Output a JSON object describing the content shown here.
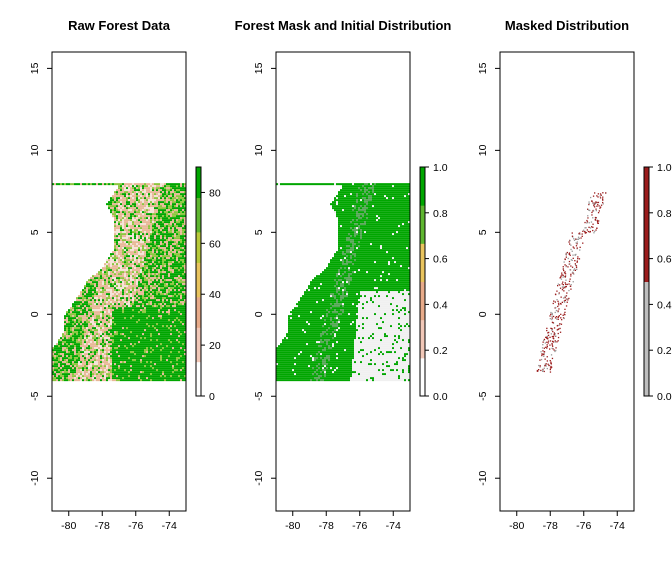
{
  "chart_data": [
    {
      "type": "heatmap",
      "title": "Raw Forest Data",
      "xlabel": "",
      "ylabel": "",
      "xlim": [
        -81,
        -73
      ],
      "ylim": [
        -12,
        16
      ],
      "x_ticks": [
        "-80",
        "-78",
        "-76",
        "-74"
      ],
      "y_ticks": [
        "-10",
        "-5",
        "0",
        "5",
        "10",
        "15"
      ],
      "legend": {
        "placement": "right",
        "min": 0,
        "max": 90,
        "ticks": [
          "0",
          "20",
          "40",
          "60",
          "80"
        ],
        "tick_values": [
          0,
          20,
          40,
          60,
          80
        ],
        "colors": [
          "#ffffff",
          "#f2c8b8",
          "#e8ab8a",
          "#e9c45e",
          "#b8c93a",
          "#5fb630",
          "#00a600"
        ]
      },
      "raster_extent": {
        "x": [
          -81,
          -73
        ],
        "y": [
          -4,
          8
        ]
      },
      "pixel_colors": {
        "dense": "#00a600",
        "mid": "#8cc63f",
        "sparse": "#e8b898",
        "bare": "#f4e3d7"
      }
    },
    {
      "type": "heatmap",
      "title": "Forest Mask and Initial Distribution",
      "xlabel": "",
      "ylabel": "",
      "xlim": [
        -81,
        -73
      ],
      "ylim": [
        -12,
        16
      ],
      "x_ticks": [
        "-80",
        "-78",
        "-76",
        "-74"
      ],
      "y_ticks": [
        "-10",
        "-5",
        "0",
        "5",
        "10",
        "15"
      ],
      "legend": {
        "placement": "right",
        "min": 0,
        "max": 1,
        "ticks": [
          "0.0",
          "0.2",
          "0.4",
          "0.6",
          "0.8",
          "1.0"
        ],
        "tick_values": [
          0,
          0.2,
          0.4,
          0.6,
          0.8,
          1.0
        ],
        "colors": [
          "#ffffff",
          "#f2c8b8",
          "#e8ab8a",
          "#e9c45e",
          "#5fb630",
          "#00a600"
        ]
      },
      "raster_extent": {
        "x": [
          -81,
          -73
        ],
        "y": [
          -4,
          8
        ]
      },
      "pixel_colors": {
        "forest": "#00a600",
        "initial": "#55a655",
        "nonforest": "#f0f0f0"
      }
    },
    {
      "type": "heatmap",
      "title": "Masked Distribution",
      "xlabel": "",
      "ylabel": "",
      "xlim": [
        -81,
        -73
      ],
      "ylim": [
        -12,
        16
      ],
      "x_ticks": [
        "-80",
        "-78",
        "-76",
        "-74"
      ],
      "y_ticks": [
        "-10",
        "-5",
        "0",
        "5",
        "10",
        "15"
      ],
      "legend": {
        "placement": "right",
        "min": 0,
        "max": 1,
        "ticks": [
          "0.0",
          "0.2",
          "0.4",
          "0.6",
          "0.8",
          "1.0"
        ],
        "tick_values": [
          0,
          0.2,
          0.4,
          0.6,
          0.8,
          1.0
        ],
        "colors": [
          "#bebebe",
          "#bebebe",
          "#9b1c1c",
          "#9b1c1c"
        ],
        "break_at": 0.5
      },
      "pixel_colors": {
        "present": "#9b1c1c",
        "absent": "#9a9a9a"
      }
    }
  ]
}
